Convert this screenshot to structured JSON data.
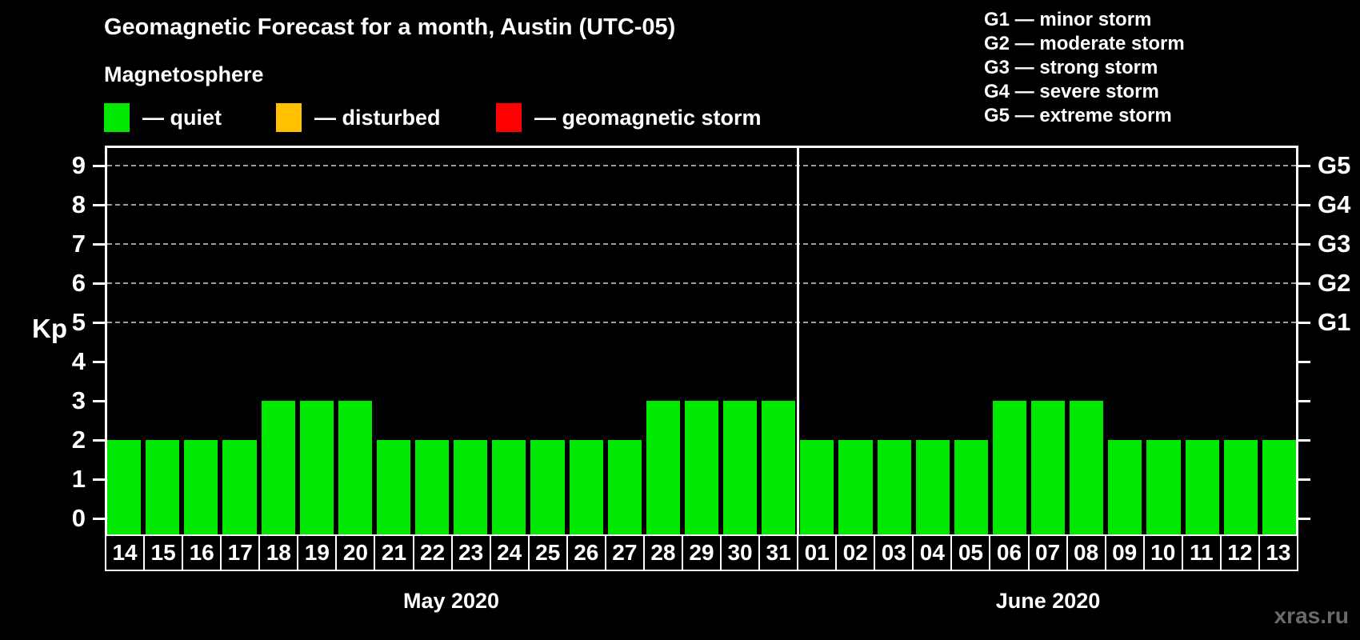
{
  "header": {
    "title": "Geomagnetic Forecast for a month, Austin (UTC-05)",
    "subtitle": "Magnetosphere"
  },
  "legend": {
    "items": [
      {
        "name": "quiet",
        "label": "— quiet",
        "color": "#00e800"
      },
      {
        "name": "disturbed",
        "label": "— disturbed",
        "color": "#ffc000"
      },
      {
        "name": "geomagnetic-storm",
        "label": "— geomagnetic storm",
        "color": "#ff0000"
      }
    ]
  },
  "g_legend": [
    "G1 — minor storm",
    "G2 — moderate storm",
    "G3 — strong storm",
    "G4 — severe storm",
    "G5 — extreme storm"
  ],
  "chart_data": {
    "type": "bar",
    "title": "Geomagnetic Forecast for a month, Austin (UTC-05)",
    "ylabel": "Kp",
    "ylim": [
      0,
      9
    ],
    "y_ticks": [
      0,
      1,
      2,
      3,
      4,
      5,
      6,
      7,
      8,
      9
    ],
    "grid_levels": [
      5,
      6,
      7,
      8,
      9
    ],
    "right_axis_labels": [
      {
        "kp": 5,
        "label": "G1"
      },
      {
        "kp": 6,
        "label": "G2"
      },
      {
        "kp": 7,
        "label": "G3"
      },
      {
        "kp": 8,
        "label": "G4"
      },
      {
        "kp": 9,
        "label": "G5"
      }
    ],
    "bar_color": "#00e800",
    "legend_position": "top",
    "grid": "dashed horizontal at storm levels",
    "months": [
      {
        "label": "May 2020",
        "days": [
          "14",
          "15",
          "16",
          "17",
          "18",
          "19",
          "20",
          "21",
          "22",
          "23",
          "24",
          "25",
          "26",
          "27",
          "28",
          "29",
          "30",
          "31"
        ],
        "values": [
          2,
          2,
          2,
          2,
          3,
          3,
          3,
          2,
          2,
          2,
          2,
          2,
          2,
          2,
          3,
          3,
          3,
          3
        ]
      },
      {
        "label": "June 2020",
        "days": [
          "01",
          "02",
          "03",
          "04",
          "05",
          "06",
          "07",
          "08",
          "09",
          "10",
          "11",
          "12",
          "13"
        ],
        "values": [
          2,
          2,
          2,
          2,
          2,
          3,
          3,
          3,
          2,
          2,
          2,
          2,
          2
        ]
      }
    ]
  },
  "watermark": "xras.ru"
}
